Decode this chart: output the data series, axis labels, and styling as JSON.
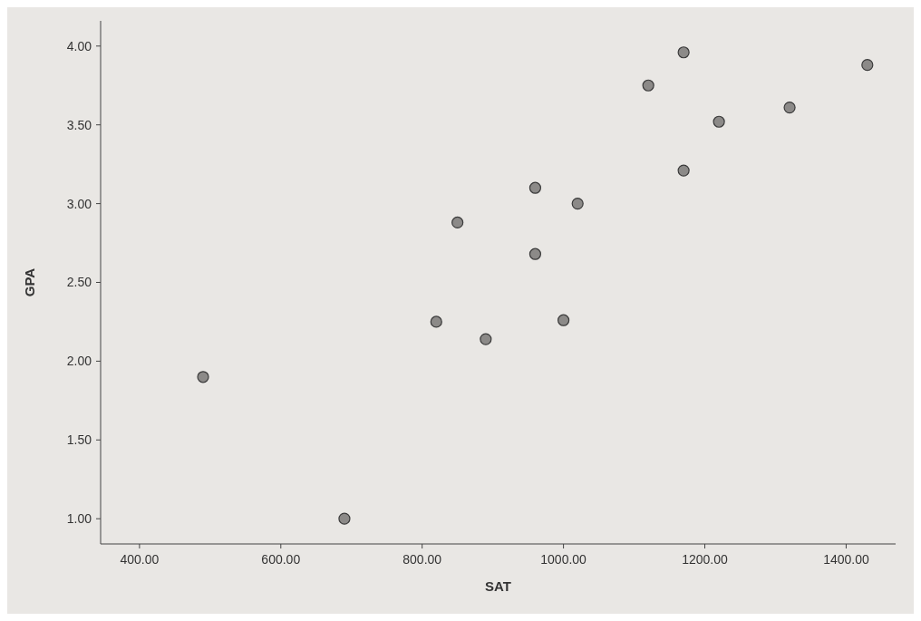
{
  "chart_data": {
    "type": "scatter",
    "xlabel": "SAT",
    "ylabel": "GPA",
    "x": [
      490,
      690,
      820,
      850,
      890,
      960,
      960,
      1000,
      1020,
      1120,
      1170,
      1170,
      1220,
      1320,
      1430
    ],
    "series": [
      {
        "color": "#8c8a88",
        "values": [
          1.9,
          1.0,
          2.25,
          2.88,
          2.14,
          3.1,
          2.68,
          2.26,
          3.0,
          3.75,
          3.96,
          3.21,
          3.52,
          3.61,
          3.88
        ]
      }
    ],
    "xlim": [
      345,
      1470
    ],
    "ylim": [
      0.84,
      4.16
    ],
    "xticks": [
      {
        "value": 400,
        "label": "400.00"
      },
      {
        "value": 600,
        "label": "600.00"
      },
      {
        "value": 800,
        "label": "800.00"
      },
      {
        "value": 1000,
        "label": "1000.00"
      },
      {
        "value": 1200,
        "label": "1200.00"
      },
      {
        "value": 1400,
        "label": "1400.00"
      }
    ],
    "yticks": [
      {
        "value": 1,
        "label": "1.00"
      },
      {
        "value": 1.5,
        "label": "1.50"
      },
      {
        "value": 2,
        "label": "2.00"
      },
      {
        "value": 2.5,
        "label": "2.50"
      },
      {
        "value": 3,
        "label": "3.00"
      },
      {
        "value": 3.5,
        "label": "3.50"
      },
      {
        "value": 4,
        "label": "4.00"
      }
    ],
    "marker": "circle",
    "grid": false
  }
}
